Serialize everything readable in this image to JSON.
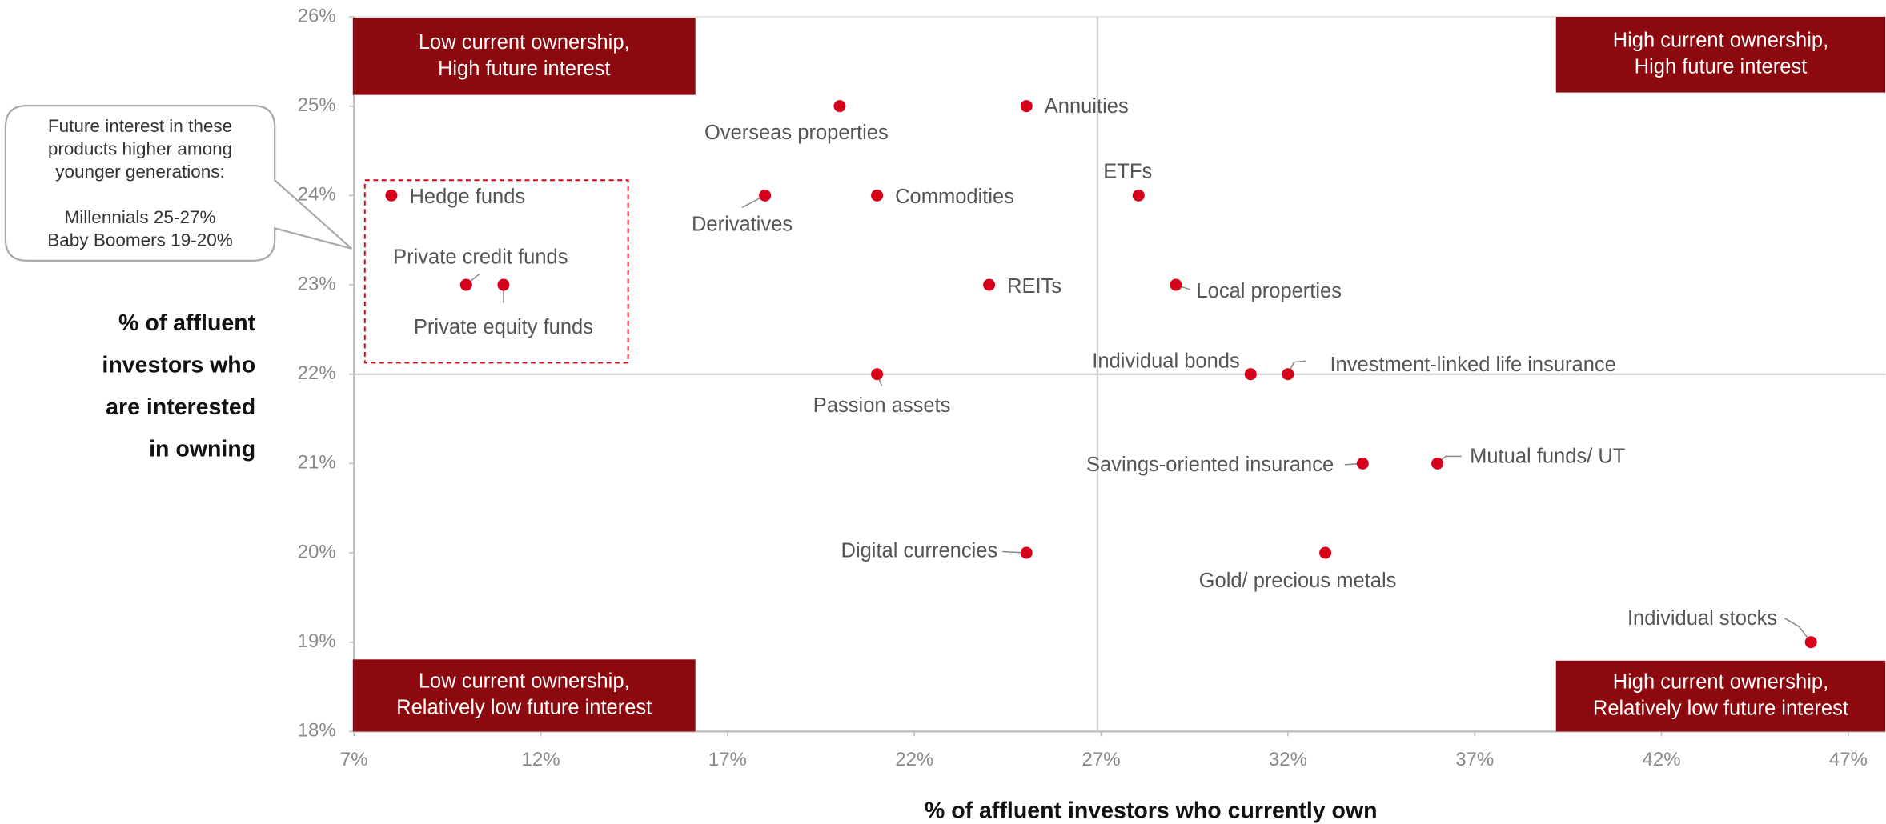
{
  "chart_data": {
    "type": "scatter",
    "xlabel": "% of affluent investors who currently own",
    "ylabel": [
      "% of affluent",
      "investors who",
      "are interested",
      "in owning"
    ],
    "color": "#d7001a",
    "xlim": [
      7,
      48
    ],
    "ylim": [
      18,
      26
    ],
    "xticks": [
      {
        "value": 7,
        "label": "7%"
      },
      {
        "value": 12,
        "label": "12%"
      },
      {
        "value": 17,
        "label": "17%"
      },
      {
        "value": 22,
        "label": "22%"
      },
      {
        "value": 27,
        "label": "27%"
      },
      {
        "value": 32,
        "label": "32%"
      },
      {
        "value": 37,
        "label": "37%"
      },
      {
        "value": 42,
        "label": "42%"
      },
      {
        "value": 47,
        "label": "47%"
      }
    ],
    "yticks": [
      {
        "value": 18,
        "label": "18%"
      },
      {
        "value": 19,
        "label": "19%"
      },
      {
        "value": 20,
        "label": "20%"
      },
      {
        "value": 21,
        "label": "21%"
      },
      {
        "value": 22,
        "label": "22%"
      },
      {
        "value": 23,
        "label": "23%"
      },
      {
        "value": 24,
        "label": "24%"
      },
      {
        "value": 25,
        "label": "25%"
      },
      {
        "value": 26,
        "label": "26%"
      }
    ],
    "quadrant_lines": {
      "x": 26.9,
      "y": 22
    },
    "labels": [
      "Hedge funds",
      "Private credit funds",
      "Private equity funds",
      "Overseas properties",
      "Annuities",
      "Derivatives",
      "Commodities",
      "ETFs",
      "REITs",
      "Local properties",
      "Passion assets",
      "Individual bonds",
      "Investment-linked life insurance",
      "Savings-oriented insurance",
      "Mutual funds/ UT",
      "Digital currencies",
      "Gold/ precious metals",
      "Individual stocks"
    ],
    "x": [
      8,
      10,
      11,
      20,
      25,
      18,
      21,
      28,
      24,
      29,
      21,
      31,
      32,
      34,
      36,
      25,
      33,
      46
    ],
    "y": [
      24,
      23,
      23,
      25,
      25,
      24,
      24,
      24,
      23,
      23,
      22,
      22,
      22,
      21,
      21,
      20,
      20,
      19
    ],
    "quadrants": [
      {
        "lines": [
          "Low current ownership,",
          "High future interest"
        ]
      },
      {
        "lines": [
          "High current ownership,",
          "High future interest"
        ]
      },
      {
        "lines": [
          "Low current ownership,",
          "Relatively low future interest"
        ]
      },
      {
        "lines": [
          "High current ownership,",
          "Relatively low future interest"
        ]
      }
    ],
    "annotation": {
      "lines": [
        "Future interest in these",
        "products higher among",
        "younger generations:",
        "",
        "Millennials 25-27%",
        "Baby Boomers 19-20%"
      ]
    }
  }
}
